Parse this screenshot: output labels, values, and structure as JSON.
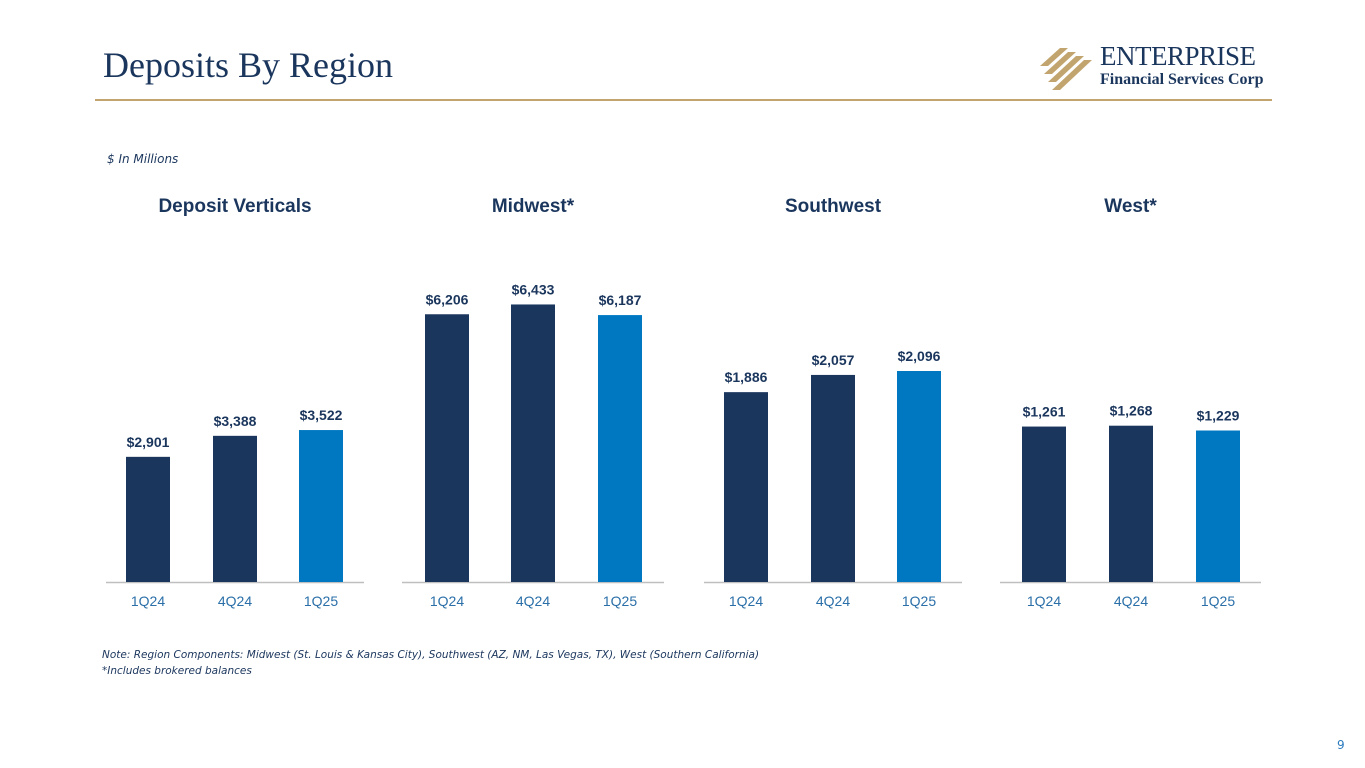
{
  "page": {
    "title": "Deposits By Region",
    "units_note": "$ In Millions",
    "footnote_1": "Note: Region Components: Midwest (St. Louis & Kansas City), Southwest (AZ, NM, Las Vegas, TX), West (Southern California)",
    "footnote_2": "*Includes brokered balances",
    "page_number": "9"
  },
  "logo": {
    "wordmark": "ENTERPRISE",
    "subtitle": "Financial Services Corp",
    "gold": "#c2a56e",
    "navy": "#1b365d"
  },
  "colors": {
    "dark_bar": "#1b365d",
    "highlight_bar": "#0078c1",
    "axis": "#bfbfbf",
    "title_text": "#1b365d",
    "tick_text": "#2a6fa8"
  },
  "chart_data": [
    {
      "type": "bar",
      "title": "Deposit Verticals",
      "categories": [
        "1Q24",
        "4Q24",
        "1Q25"
      ],
      "values": [
        2901,
        3388,
        3522
      ],
      "labels": [
        "$2,901",
        "$3,388",
        "$3,522"
      ],
      "ylim": [
        0,
        7000
      ],
      "highlight_index": 2,
      "xlabel": "",
      "ylabel": ""
    },
    {
      "type": "bar",
      "title": "Midwest*",
      "categories": [
        "1Q24",
        "4Q24",
        "1Q25"
      ],
      "values": [
        6206,
        6433,
        6187
      ],
      "labels": [
        "$6,206",
        "$6,433",
        "$6,187"
      ],
      "ylim": [
        0,
        7000
      ],
      "highlight_index": 2,
      "xlabel": "",
      "ylabel": ""
    },
    {
      "type": "bar",
      "title": "Southwest",
      "categories": [
        "1Q24",
        "4Q24",
        "1Q25"
      ],
      "values": [
        1886,
        2057,
        2096
      ],
      "labels": [
        "$1,886",
        "$2,057",
        "$2,096"
      ],
      "ylim": [
        0,
        3000
      ],
      "highlight_index": 2,
      "xlabel": "",
      "ylabel": ""
    },
    {
      "type": "bar",
      "title": "West*",
      "categories": [
        "1Q24",
        "4Q24",
        "1Q25"
      ],
      "values": [
        1261,
        1268,
        1229
      ],
      "labels": [
        "$1,261",
        "$1,268",
        "$1,229"
      ],
      "ylim": [
        0,
        2450
      ],
      "highlight_index": 2,
      "xlabel": "",
      "ylabel": ""
    }
  ]
}
